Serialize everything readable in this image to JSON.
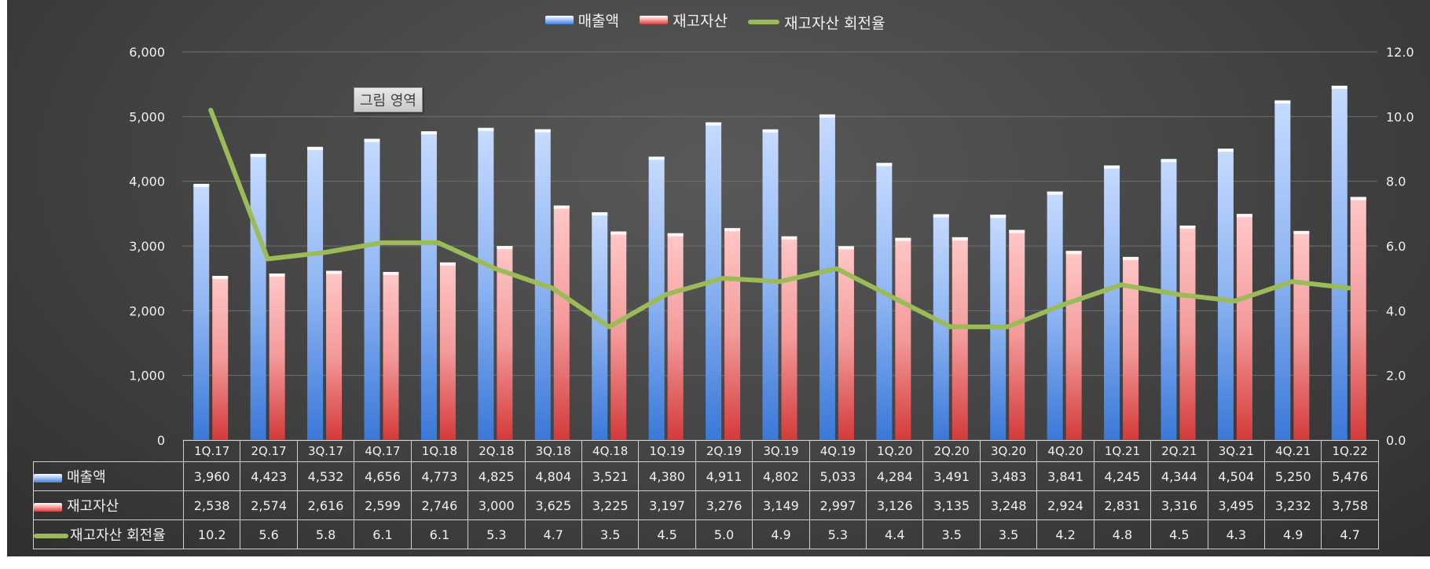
{
  "chart_data": {
    "type": "bar",
    "categories": [
      "1Q.17",
      "2Q.17",
      "3Q.17",
      "4Q.17",
      "1Q.18",
      "2Q.18",
      "3Q.18",
      "4Q.18",
      "1Q.19",
      "2Q.19",
      "3Q.19",
      "4Q.19",
      "1Q.20",
      "2Q.20",
      "3Q.20",
      "4Q.20",
      "1Q.21",
      "2Q.21",
      "3Q.21",
      "4Q.21",
      "1Q.22"
    ],
    "series": [
      {
        "name": "매출액",
        "type": "bar",
        "axis": "left",
        "values": [
          3960,
          4423,
          4532,
          4656,
          4773,
          4825,
          4804,
          3521,
          4380,
          4911,
          4802,
          5033,
          4284,
          3491,
          3483,
          3841,
          4245,
          4344,
          4504,
          5250,
          5476
        ],
        "labels": [
          "3,960",
          "4,423",
          "4,532",
          "4,656",
          "4,773",
          "4,825",
          "4,804",
          "3,521",
          "4,380",
          "4,911",
          "4,802",
          "5,033",
          "4,284",
          "3,491",
          "3,483",
          "3,841",
          "4,245",
          "4,344",
          "4,504",
          "5,250",
          "5,476"
        ]
      },
      {
        "name": "재고자산",
        "type": "bar",
        "axis": "left",
        "values": [
          2538,
          2574,
          2616,
          2599,
          2746,
          3000,
          3625,
          3225,
          3197,
          3276,
          3149,
          2997,
          3126,
          3135,
          3248,
          2924,
          2831,
          3316,
          3495,
          3232,
          3758
        ],
        "labels": [
          "2,538",
          "2,574",
          "2,616",
          "2,599",
          "2,746",
          "3,000",
          "3,625",
          "3,225",
          "3,197",
          "3,276",
          "3,149",
          "2,997",
          "3,126",
          "3,135",
          "3,248",
          "2,924",
          "2,831",
          "3,316",
          "3,495",
          "3,232",
          "3,758"
        ]
      },
      {
        "name": "재고자산 회전율",
        "type": "line",
        "axis": "right",
        "values": [
          10.2,
          5.6,
          5.8,
          6.1,
          6.1,
          5.3,
          4.7,
          3.5,
          4.5,
          5.0,
          4.9,
          5.3,
          4.4,
          3.5,
          3.5,
          4.2,
          4.8,
          4.5,
          4.3,
          4.9,
          4.7
        ],
        "labels": [
          "10.2",
          "5.6",
          "5.8",
          "6.1",
          "6.1",
          "5.3",
          "4.7",
          "3.5",
          "4.5",
          "5.0",
          "4.9",
          "5.3",
          "4.4",
          "3.5",
          "3.5",
          "4.2",
          "4.8",
          "4.5",
          "4.3",
          "4.9",
          "4.7"
        ]
      }
    ],
    "ylim": [
      0,
      6000
    ],
    "y2lim": [
      0,
      12
    ],
    "yticks": [
      "0",
      "1,000",
      "2,000",
      "3,000",
      "4,000",
      "5,000",
      "6,000"
    ],
    "y2ticks": [
      "0.0",
      "2.0",
      "4.0",
      "6.0",
      "8.0",
      "10.0",
      "12.0"
    ],
    "legend_position": "top-center",
    "grid": true,
    "data_table": true
  },
  "colors": {
    "sales": "#4a86e8",
    "inventory": "#e05a5a",
    "turnover": "#9bbb59"
  },
  "tooltip": "그림 영역"
}
